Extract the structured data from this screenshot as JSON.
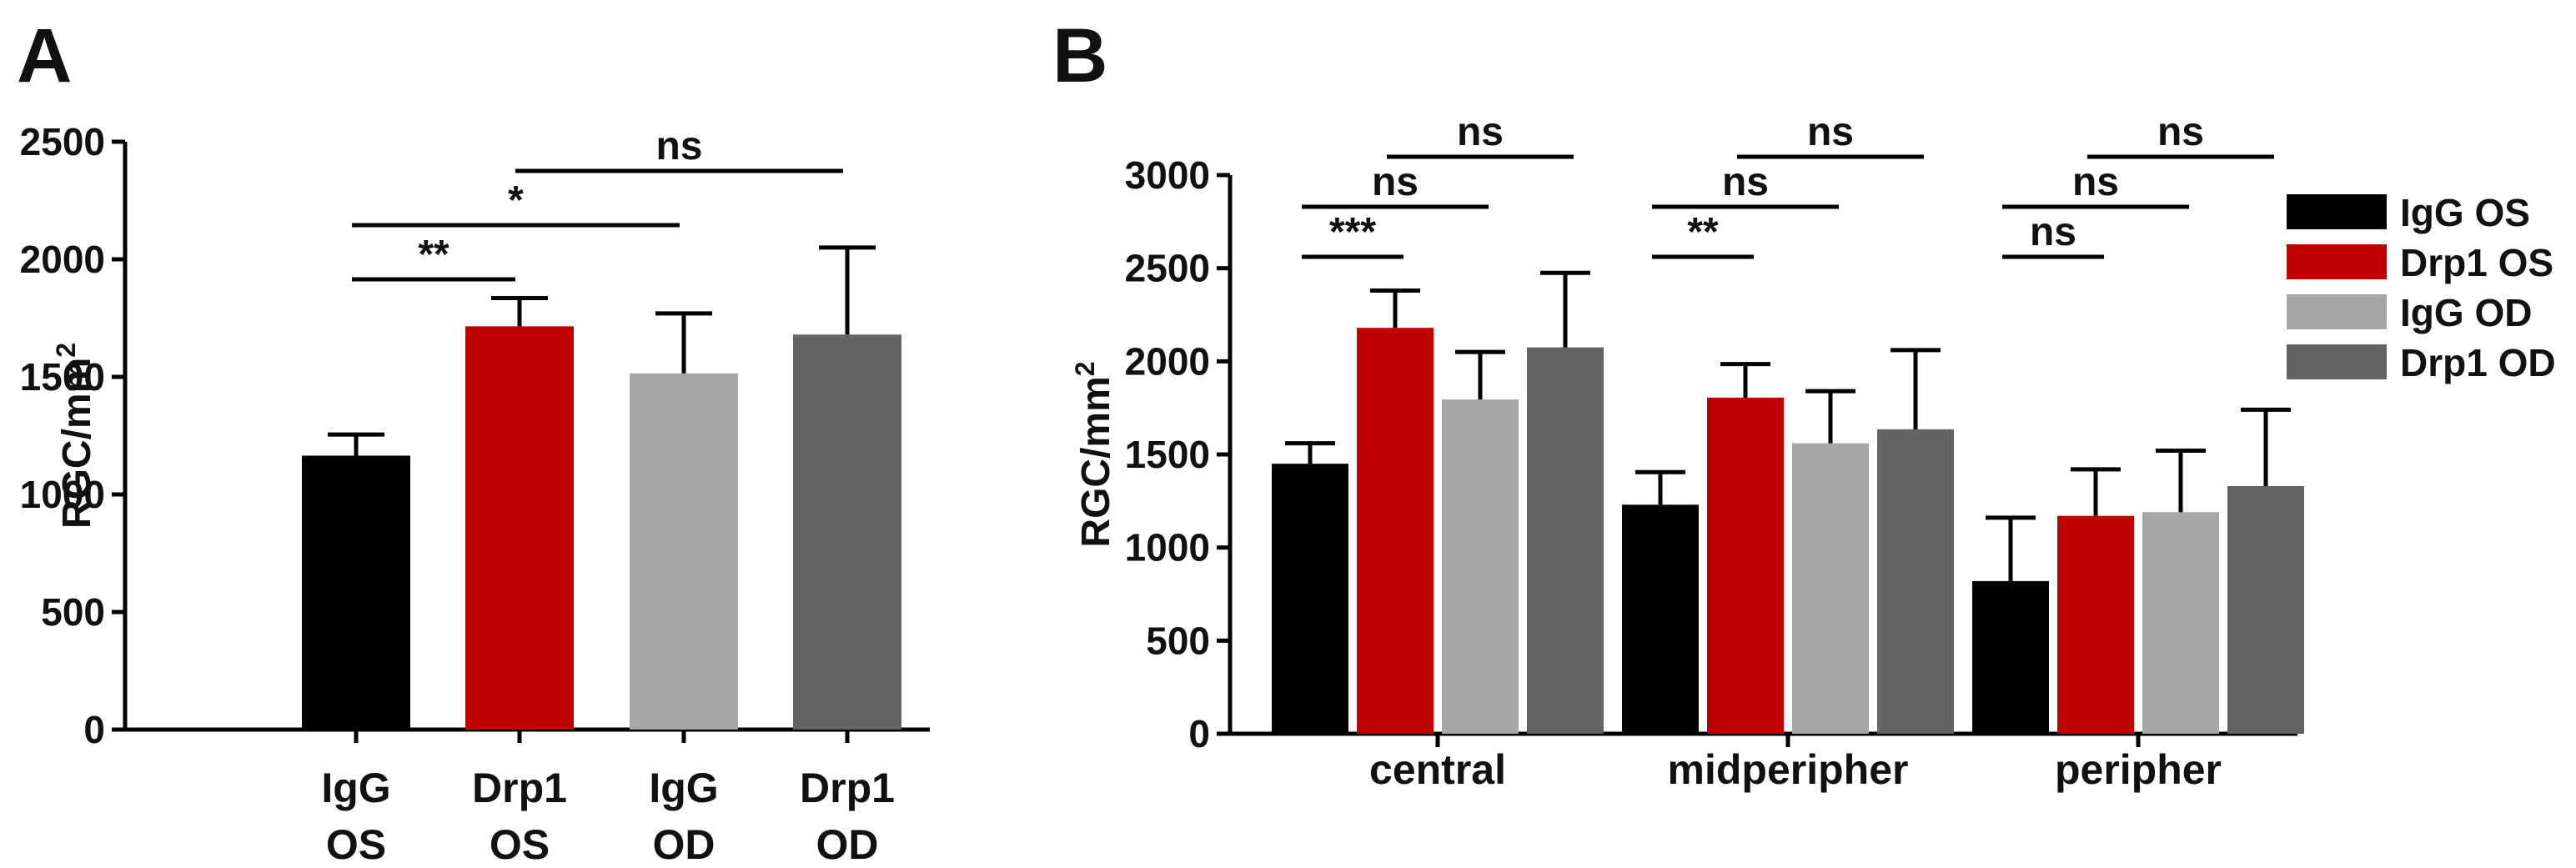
{
  "colors": {
    "IgG OS": "#000000",
    "Drp1 OS": "#c00000",
    "IgG OD": "#a6a6a6",
    "Drp1 OD": "#636363"
  },
  "chart_data": [
    {
      "panel": "A",
      "type": "bar",
      "ylabel": "RGC/mm",
      "ylabel_sup": "2",
      "ylim": [
        0,
        2500
      ],
      "yticks": [
        0,
        500,
        1000,
        1500,
        2000,
        2500
      ],
      "categories": [
        {
          "line1": "IgG",
          "line2": "OS",
          "series": "IgG OS",
          "value": 1165,
          "error": 90
        },
        {
          "line1": "Drp1",
          "line2": "OS",
          "series": "Drp1 OS",
          "value": 1715,
          "error": 120
        },
        {
          "line1": "IgG",
          "line2": "OD",
          "series": "IgG OD",
          "value": 1515,
          "error": 255
        },
        {
          "line1": "Drp1",
          "line2": "OD",
          "series": "Drp1 OD",
          "value": 1680,
          "error": 370
        }
      ],
      "significance": [
        {
          "from": 0,
          "to": 1,
          "label": "**"
        },
        {
          "from": 0,
          "to": 2,
          "label": "*"
        },
        {
          "from": 1,
          "to": 3,
          "label": "ns"
        }
      ]
    },
    {
      "panel": "B",
      "type": "bar",
      "ylabel": "RGC/mm",
      "ylabel_sup": "2",
      "ylim": [
        0,
        3000
      ],
      "yticks": [
        0,
        500,
        1000,
        1500,
        2000,
        2500,
        3000
      ],
      "categories": [
        "central",
        "midperipher",
        "peripher"
      ],
      "legend": [
        "IgG OS",
        "Drp1 OS",
        "IgG OD",
        "Drp1 OD"
      ],
      "series": [
        {
          "name": "IgG OS",
          "values": [
            1450,
            1230,
            820
          ],
          "errors": [
            110,
            175,
            340
          ]
        },
        {
          "name": "Drp1 OS",
          "values": [
            2180,
            1805,
            1170
          ],
          "errors": [
            200,
            180,
            250
          ]
        },
        {
          "name": "IgG OD",
          "values": [
            1795,
            1560,
            1190
          ],
          "errors": [
            255,
            280,
            330
          ]
        },
        {
          "name": "Drp1 OD",
          "values": [
            2075,
            1635,
            1330
          ],
          "errors": [
            400,
            425,
            410
          ]
        }
      ],
      "significance": [
        {
          "group": 0,
          "from": 0,
          "to": 1,
          "label": "***"
        },
        {
          "group": 0,
          "from": 0,
          "to": 2,
          "label": "ns"
        },
        {
          "group": 0,
          "from": 1,
          "to": 3,
          "label": "ns"
        },
        {
          "group": 1,
          "from": 0,
          "to": 1,
          "label": "**"
        },
        {
          "group": 1,
          "from": 0,
          "to": 2,
          "label": "ns"
        },
        {
          "group": 1,
          "from": 1,
          "to": 3,
          "label": "ns"
        },
        {
          "group": 2,
          "from": 0,
          "to": 1,
          "label": "ns"
        },
        {
          "group": 2,
          "from": 0,
          "to": 2,
          "label": "ns"
        },
        {
          "group": 2,
          "from": 1,
          "to": 3,
          "label": "ns"
        }
      ]
    }
  ]
}
